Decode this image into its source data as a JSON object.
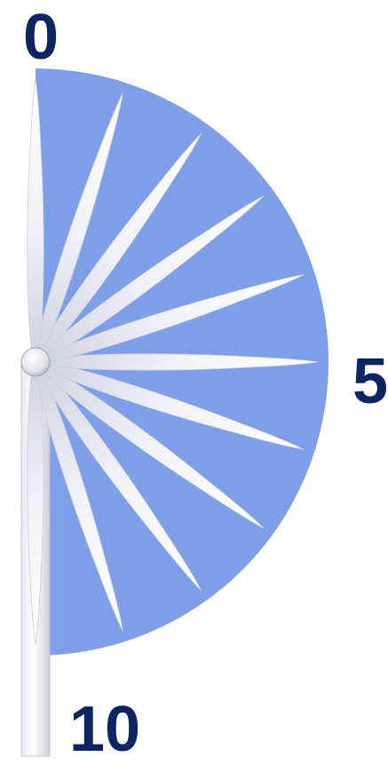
{
  "diagram": {
    "colors": {
      "sector_fill": "#7f9ee8",
      "blade_fill": "#f1f3f8",
      "blade_shade": "#c9cfdc",
      "label_color": "#0d2462"
    },
    "scale_labels": {
      "top": "0",
      "middle": "5",
      "bottom": "10"
    },
    "blade_positions": [
      0,
      1,
      2,
      3,
      4,
      5,
      6,
      7,
      8,
      9,
      10
    ]
  }
}
